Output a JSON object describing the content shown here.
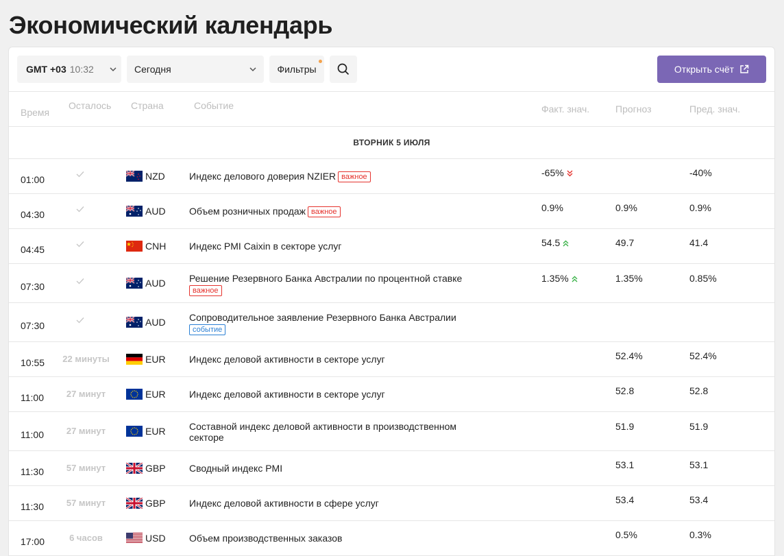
{
  "page_title": "Экономический календарь",
  "toolbar": {
    "timezone_label": "GMT +03",
    "timezone_time": "10:32",
    "date_value": "Сегодня",
    "filters_label": "Фильтры",
    "open_account_label": "Открыть счёт"
  },
  "columns": {
    "time": "Время",
    "left": "Осталось",
    "country": "Страна",
    "event": "Событие",
    "actual": "Факт. знач.",
    "forecast": "Прогноз",
    "previous": "Пред. знач."
  },
  "day_header": "ВТОРНИК 5 ИЮЛЯ",
  "colors": {
    "accent": "#7b67b5",
    "important": "#e5322d",
    "event_badge": "#2a7fd4",
    "up": "#3cb34a",
    "down": "#e5322d"
  },
  "rows": [
    {
      "time": "01:00",
      "left": "",
      "done": true,
      "flag": "nz",
      "currency": "NZD",
      "event": "Индекс делового доверия NZIER",
      "badge": "важное",
      "badge_type": "red",
      "actual": "-65%",
      "trend": "down",
      "forecast": "",
      "previous": "-40%"
    },
    {
      "time": "04:30",
      "left": "",
      "done": true,
      "flag": "au",
      "currency": "AUD",
      "event": "Объем розничных продаж",
      "badge": "важное",
      "badge_type": "red",
      "actual": "0.9%",
      "trend": "",
      "forecast": "0.9%",
      "previous": "0.9%"
    },
    {
      "time": "04:45",
      "left": "",
      "done": true,
      "flag": "cn",
      "currency": "CNH",
      "event": "Индекс PMI Caixin в секторе услуг",
      "badge": "",
      "badge_type": "",
      "actual": "54.5",
      "trend": "up",
      "forecast": "49.7",
      "previous": "41.4"
    },
    {
      "time": "07:30",
      "left": "",
      "done": true,
      "flag": "au",
      "currency": "AUD",
      "event": "Решение Резервного Банка Австралии по процентной ставке",
      "badge": "важное",
      "badge_type": "red",
      "actual": "1.35%",
      "trend": "up",
      "forecast": "1.35%",
      "previous": "0.85%"
    },
    {
      "time": "07:30",
      "left": "",
      "done": true,
      "flag": "au",
      "currency": "AUD",
      "event": "Сопроводительное заявление Резервного Банка Австралии",
      "badge": "событие",
      "badge_type": "blue",
      "actual": "",
      "trend": "",
      "forecast": "",
      "previous": ""
    },
    {
      "time": "10:55",
      "left": "22 минуты",
      "done": false,
      "flag": "de",
      "currency": "EUR",
      "event": "Индекс деловой активности в секторе услуг",
      "badge": "",
      "badge_type": "",
      "actual": "",
      "trend": "",
      "forecast": "52.4%",
      "previous": "52.4%"
    },
    {
      "time": "11:00",
      "left": "27 минут",
      "done": false,
      "flag": "eu",
      "currency": "EUR",
      "event": "Индекс деловой активности в секторе услуг",
      "badge": "",
      "badge_type": "",
      "actual": "",
      "trend": "",
      "forecast": "52.8",
      "previous": "52.8"
    },
    {
      "time": "11:00",
      "left": "27 минут",
      "done": false,
      "flag": "eu",
      "currency": "EUR",
      "event": "Составной индекс деловой активности в производственном секторе",
      "badge": "",
      "badge_type": "",
      "actual": "",
      "trend": "",
      "forecast": "51.9",
      "previous": "51.9"
    },
    {
      "time": "11:30",
      "left": "57 минут",
      "done": false,
      "flag": "gb",
      "currency": "GBP",
      "event": "Сводный индекс PMI",
      "badge": "",
      "badge_type": "",
      "actual": "",
      "trend": "",
      "forecast": "53.1",
      "previous": "53.1"
    },
    {
      "time": "11:30",
      "left": "57 минут",
      "done": false,
      "flag": "gb",
      "currency": "GBP",
      "event": "Индекс деловой активности в сфере услуг",
      "badge": "",
      "badge_type": "",
      "actual": "",
      "trend": "",
      "forecast": "53.4",
      "previous": "53.4"
    },
    {
      "time": "17:00",
      "left": "6 часов",
      "done": false,
      "flag": "us",
      "currency": "USD",
      "event": "Объем производственных заказов",
      "badge": "",
      "badge_type": "",
      "actual": "",
      "trend": "",
      "forecast": "0.5%",
      "previous": "0.3%"
    }
  ]
}
